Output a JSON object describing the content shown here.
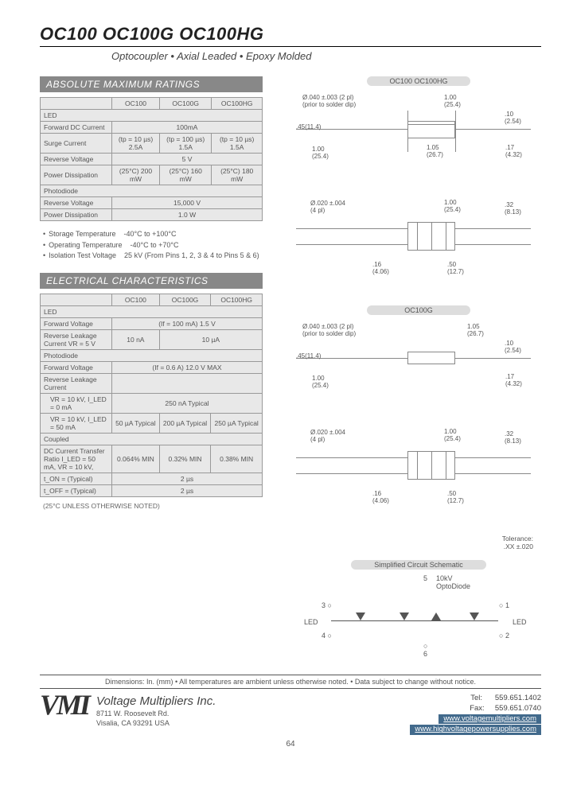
{
  "colors": {
    "header_bg": "#888888",
    "header_text": "#ffffff",
    "table_bg": "#e8e8e8",
    "table_border": "#999999",
    "text": "#555555",
    "url_bg": "#426a8c",
    "pill_bg": "#dddddd"
  },
  "title": "OC100   OC100G   OC100HG",
  "subtitle": "Optocoupler • Axial Leaded • Epoxy Molded",
  "sect1_header": "ABSOLUTE MAXIMUM RATINGS",
  "ratings_table": {
    "cols": [
      "OC100",
      "OC100G",
      "OC100HG"
    ],
    "cats": [
      {
        "label": "LED",
        "rows": [
          {
            "label": "Forward DC Current",
            "vals": [
              "100mA"
            ],
            "span": 3
          },
          {
            "label": "Surge Current",
            "vals": [
              "(tp = 10 µs) 2.5A",
              "(tp = 100 µs) 1.5A",
              "(tp = 10 µs) 1.5A"
            ]
          },
          {
            "label": "Reverse Voltage",
            "vals": [
              "5 V"
            ],
            "span": 3
          },
          {
            "label": "Power Dissipation",
            "vals": [
              "(25°C) 200 mW",
              "(25°C) 160 mW",
              "(25°C) 180 mW"
            ]
          }
        ]
      },
      {
        "label": "Photodiode",
        "rows": [
          {
            "label": "Reverse Voltage",
            "vals": [
              "15,000 V"
            ],
            "span": 3
          },
          {
            "label": "Power Dissipation",
            "vals": [
              "1.0 W"
            ],
            "span": 3
          }
        ]
      }
    ]
  },
  "notes": [
    {
      "label": "Storage Temperature",
      "val": "-40°C to +100°C"
    },
    {
      "label": "Operating Temperature",
      "val": "-40°C to +70°C"
    },
    {
      "label": "Isolation Test Voltage",
      "val": "25 kV (From Pins 1, 2, 3 & 4 to Pins 5 & 6)"
    }
  ],
  "sect2_header": "ELECTRICAL  CHARACTERISTICS",
  "elec_table": {
    "cols": [
      "OC100",
      "OC100G",
      "OC100HG"
    ],
    "cats": [
      {
        "label": "LED",
        "rows": [
          {
            "label": "Forward Voltage",
            "vals": [
              "(If = 100 mA) 1.5 V"
            ],
            "span": 3
          },
          {
            "label": "Reverse Leakage Current VR = 5 V",
            "vals": [
              "10 nA",
              "10 µA"
            ],
            "spans": [
              1,
              2
            ]
          }
        ]
      },
      {
        "label": "Photodiode",
        "rows": [
          {
            "label": "Forward Voltage",
            "vals": [
              "(If = 0.6 A) 12.0 V MAX"
            ],
            "span": 3
          },
          {
            "label": "Reverse Leakage Current",
            "sub": true,
            "vals": []
          },
          {
            "label": "VR = 10 kV, I_LED = 0 mA",
            "indent": true,
            "vals": [
              "250 nA Typical"
            ],
            "span": 3
          },
          {
            "label": "VR = 10 kV, I_LED = 50 mA",
            "indent": true,
            "vals": [
              "50 µA Typical",
              "200 µA Typical",
              "250 µA Typical"
            ]
          }
        ]
      },
      {
        "label": "Coupled",
        "rows": [
          {
            "label": "DC Current Transfer Ratio  I_LED = 50 mA, VR = 10 kV,",
            "vals": [
              "0.064% MIN",
              "0.32% MIN",
              "0.38% MIN"
            ]
          },
          {
            "label": "t_ON = (Typical)",
            "vals": [
              "2 µs"
            ],
            "span": 3
          },
          {
            "label": "t_OFF = (Typical)",
            "vals": [
              "2 µs"
            ],
            "span": 3
          }
        ]
      }
    ]
  },
  "table_footer": "(25°C UNLESS OTHERWISE NOTED)",
  "diagrams": {
    "top_pill": "OC100  OC100HG",
    "mid_pill": "OC100G",
    "d": {
      "solder_note": "Ø.040 ±.003 (2 pl)\n(prior to solder dip)",
      "pin_note": "Ø.020 ±.004\n(4 pl)",
      "l100": "1.00\n(25.4)",
      "w105": "1.05\n(26.7)",
      "h10": ".10\n(2.54)",
      "h17": ".17\n(4.32)",
      "l45": ".45(11.4)",
      "s16": ".16\n(4.06)",
      "s50": ".50\n(12.7)",
      "h32": ".32\n(8.13)"
    },
    "tolerance": "Tolerance:\n.XX  ±.020"
  },
  "schematic": {
    "pill": "Simplified Circuit Schematic",
    "opto": "10kV\nOptoDiode",
    "led": "LED",
    "pins": {
      "p1": "1",
      "p2": "2",
      "p3": "3",
      "p4": "4",
      "p5": "5",
      "p6": "6"
    }
  },
  "footer_dims": "Dimensions:  In. (mm)   •   All temperatures are ambient unless otherwise noted.   •   Data subject to change without notice.",
  "company": {
    "logo": "VMI",
    "name": "Voltage Multipliers Inc.",
    "addr1": "8711 W. Roosevelt Rd.",
    "addr2": "Visalia, CA  93291  USA",
    "tel_label": "Tel:",
    "tel": "559.651.1402",
    "fax_label": "Fax:",
    "fax": "559.651.0740",
    "url1": "www.voltagemultipliers.com",
    "url2": "www.highvoltagepowersupplies.com"
  },
  "page_number": "64"
}
